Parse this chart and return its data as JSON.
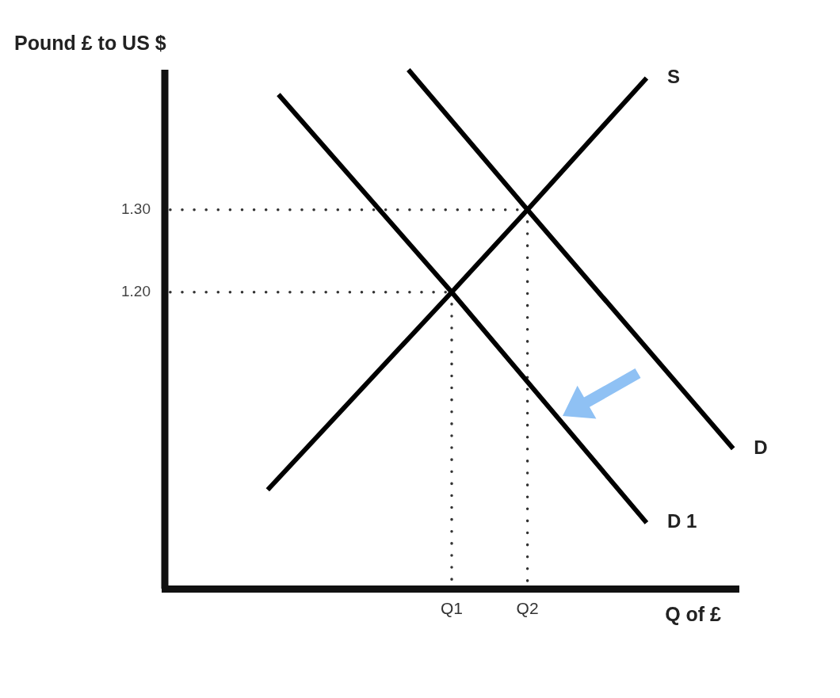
{
  "chart_data": {
    "type": "line",
    "xlabel": "Q of £",
    "ylabel": "Pound £ to US $",
    "categories": [
      null,
      null,
      null,
      null,
      null,
      null,
      null,
      null,
      null,
      null,
      null,
      null,
      null,
      null,
      null,
      null,
      null,
      null,
      null,
      null,
      null,
      null,
      null,
      null,
      null,
      null,
      "Q1",
      null,
      null,
      null,
      null,
      null,
      null,
      "Q2",
      null,
      null,
      null,
      null,
      null,
      null,
      null,
      null,
      null,
      null,
      null,
      null,
      null,
      null,
      null,
      null,
      null,
      null,
      null
    ],
    "ylim": [
      0.84,
      1.47
    ],
    "yticks": [
      {
        "value": 1.2,
        "label": "1.20"
      },
      {
        "value": 1.3,
        "label": "1.30"
      }
    ],
    "grid": false,
    "legend": false,
    "marker": "none",
    "line_style": "solid",
    "series": [
      {
        "name": "S",
        "color": "#000000",
        "values": [
          null,
          null,
          null,
          null,
          null,
          null,
          null,
          null,
          null,
          0.96,
          null,
          null,
          null,
          null,
          null,
          null,
          null,
          null,
          null,
          null,
          null,
          null,
          null,
          null,
          null,
          null,
          1.2,
          null,
          null,
          null,
          null,
          null,
          null,
          1.3,
          null,
          null,
          null,
          null,
          null,
          null,
          null,
          null,
          null,
          null,
          1.46,
          null,
          null,
          null,
          null,
          null,
          null,
          null,
          null
        ]
      },
      {
        "name": "D 1",
        "color": "#000000",
        "values": [
          null,
          null,
          null,
          null,
          null,
          null,
          null,
          null,
          null,
          null,
          1.44,
          null,
          null,
          null,
          null,
          null,
          null,
          null,
          null,
          null,
          null,
          null,
          null,
          null,
          null,
          null,
          1.2,
          null,
          null,
          null,
          null,
          null,
          null,
          null,
          null,
          null,
          null,
          null,
          null,
          null,
          null,
          null,
          null,
          null,
          0.92,
          null,
          null,
          null,
          null,
          null,
          null,
          null,
          null
        ]
      },
      {
        "name": "D",
        "color": "#000000",
        "values": [
          null,
          null,
          null,
          null,
          null,
          null,
          null,
          null,
          null,
          null,
          null,
          null,
          null,
          null,
          null,
          null,
          null,
          null,
          null,
          null,
          null,
          null,
          1.47,
          null,
          null,
          null,
          null,
          null,
          null,
          null,
          null,
          null,
          null,
          1.3,
          null,
          null,
          null,
          null,
          null,
          null,
          null,
          null,
          null,
          null,
          null,
          null,
          null,
          null,
          null,
          null,
          null,
          null,
          1.01
        ]
      },
      {
        "color": "#333333",
        "line_style": "dotted",
        "values": [
          1.3,
          null,
          null,
          null,
          null,
          null,
          null,
          null,
          null,
          null,
          null,
          null,
          null,
          null,
          null,
          null,
          null,
          null,
          null,
          null,
          null,
          null,
          null,
          null,
          null,
          null,
          null,
          null,
          null,
          null,
          null,
          null,
          null,
          1.3,
          null,
          null,
          null,
          null,
          null,
          null,
          null,
          null,
          null,
          null,
          null,
          null,
          null,
          null,
          null,
          null,
          null,
          null,
          null
        ]
      },
      {
        "color": "#333333",
        "line_style": "dotted",
        "values": [
          1.2,
          null,
          null,
          null,
          null,
          null,
          null,
          null,
          null,
          null,
          null,
          null,
          null,
          null,
          null,
          null,
          null,
          null,
          null,
          null,
          null,
          null,
          null,
          null,
          null,
          null,
          1.2,
          null,
          null,
          null,
          null,
          null,
          null,
          null,
          null,
          null,
          null,
          null,
          null,
          null,
          null,
          null,
          null,
          null,
          null,
          null,
          null,
          null,
          null,
          null,
          null,
          null,
          null
        ]
      },
      {
        "color": "#333333",
        "line_style": "dotted",
        "x": [
          "Q1",
          "Q1"
        ],
        "values": [
          1.2,
          0.84
        ]
      },
      {
        "color": "#333333",
        "line_style": "dotted",
        "x": [
          "Q2",
          "Q2"
        ],
        "values": [
          1.3,
          0.84
        ]
      }
    ]
  }
}
